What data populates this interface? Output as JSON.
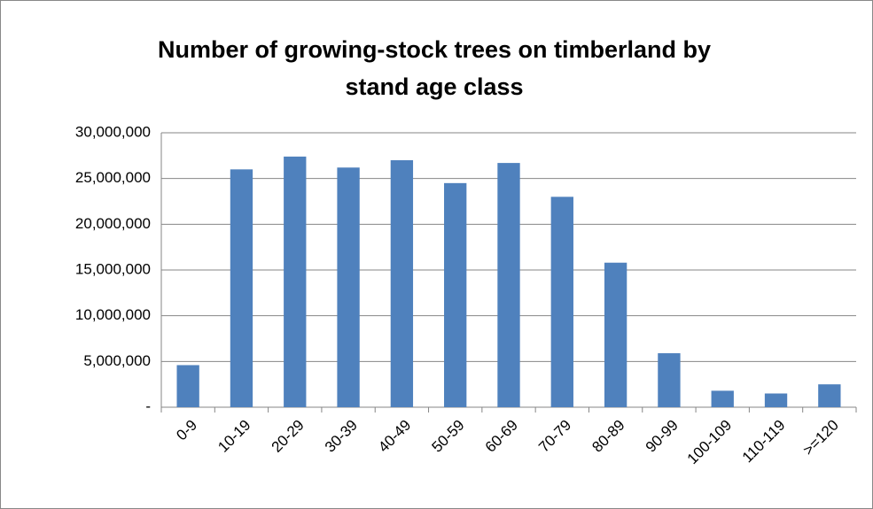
{
  "chart_data": {
    "type": "bar",
    "title": "Number of growing-stock trees on timberland by stand age class",
    "categories": [
      "0-9",
      "10-19",
      "20-29",
      "30-39",
      "40-49",
      "50-59",
      "60-69",
      "70-79",
      "80-89",
      "90-99",
      "100-109",
      "110-119",
      ">=120"
    ],
    "values": [
      4600000,
      26000000,
      27400000,
      26200000,
      27000000,
      24500000,
      26700000,
      23000000,
      15800000,
      5900000,
      1800000,
      1500000,
      2500000
    ],
    "color": "#4f81bd",
    "ylim": [
      0,
      30000000
    ],
    "yticks": [
      {
        "value": 0,
        "label": "-"
      },
      {
        "value": 5000000,
        "label": "5,000,000"
      },
      {
        "value": 10000000,
        "label": "10,000,000"
      },
      {
        "value": 15000000,
        "label": "15,000,000"
      },
      {
        "value": 20000000,
        "label": "20,000,000"
      },
      {
        "value": 25000000,
        "label": "25,000,000"
      },
      {
        "value": 30000000,
        "label": "30,000,000"
      }
    ],
    "grid": true
  }
}
